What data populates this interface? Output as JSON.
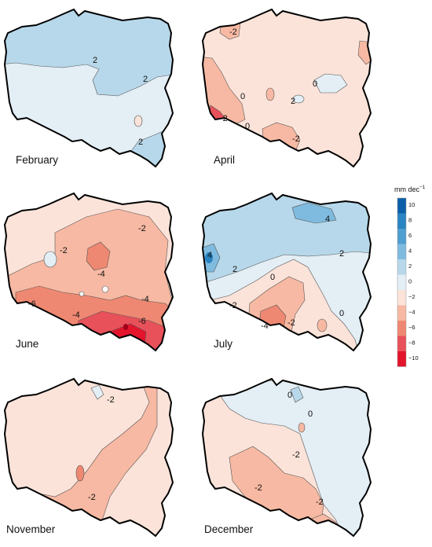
{
  "legend": {
    "title": "mm dec",
    "title_sup": "−1",
    "ticks": [
      "10",
      "8",
      "6",
      "4",
      "2",
      "0",
      "−2",
      "−4",
      "−6",
      "−8",
      "−10"
    ],
    "colors": [
      "#0b5ea8",
      "#2a84c2",
      "#4f9fd0",
      "#7fbbdf",
      "#b7d8ea",
      "#e3eef5",
      "#fbe3d9",
      "#f7b9a3",
      "#ef8872",
      "#e8515a",
      "#e3142c"
    ]
  },
  "panels": [
    {
      "month": "February",
      "labels": [
        "2",
        "2",
        "2"
      ]
    },
    {
      "month": "April",
      "labels": [
        "-2",
        "0",
        "2",
        "0",
        "-2",
        "-2",
        "0"
      ]
    },
    {
      "month": "June",
      "labels": [
        "-2",
        "-2",
        "-4",
        "-4",
        "-4",
        "-6",
        "-6"
      ]
    },
    {
      "month": "July",
      "labels": [
        "4",
        "4",
        "2",
        "2",
        "0",
        "-2",
        "0",
        "-4",
        "-2"
      ]
    },
    {
      "month": "November",
      "labels": [
        "-2",
        "-2"
      ]
    },
    {
      "month": "December",
      "labels": [
        "0",
        "0",
        "-2",
        "-2",
        "-2"
      ]
    }
  ]
}
